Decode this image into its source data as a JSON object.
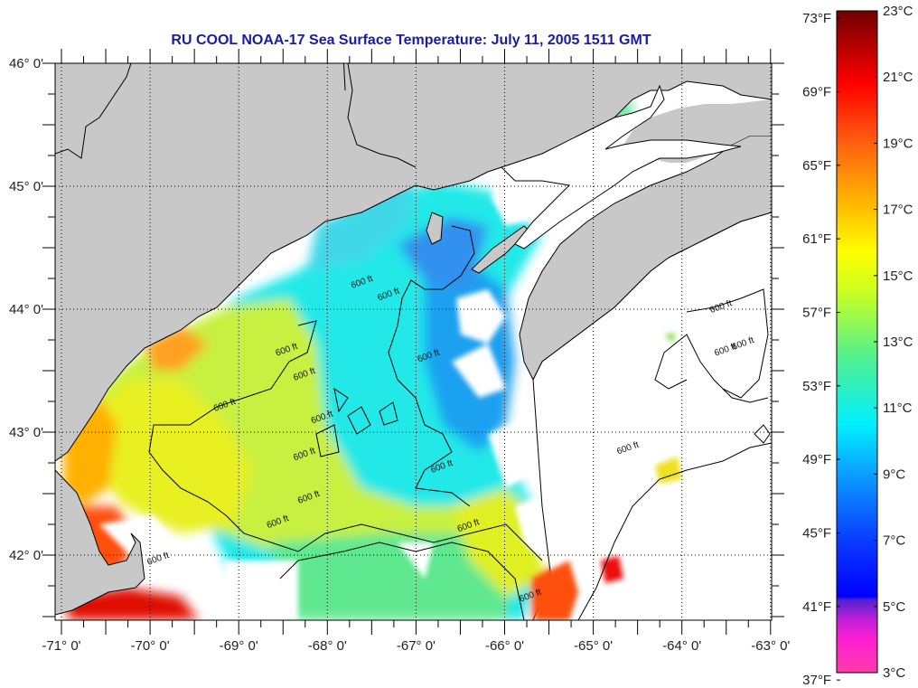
{
  "title": "RU COOL  NOAA-17  Sea Surface Temperature:  July 11, 2005 1511 GMT",
  "map": {
    "lon_range": [
      -71.08,
      -62.98
    ],
    "lat_range": [
      41.47,
      46.0
    ],
    "lon_ticks": [
      {
        "value": -71,
        "label": "-71° 0'"
      },
      {
        "value": -70,
        "label": "-70° 0'"
      },
      {
        "value": -69,
        "label": "-69° 0'"
      },
      {
        "value": -68,
        "label": "-68° 0'"
      },
      {
        "value": -67,
        "label": "-67° 0'"
      },
      {
        "value": -66,
        "label": "-66° 0'"
      },
      {
        "value": -65,
        "label": "-65° 0'"
      },
      {
        "value": -64,
        "label": "-64° 0'"
      },
      {
        "value": -63,
        "label": "-63° 0'"
      }
    ],
    "lat_ticks": [
      {
        "value": 46,
        "label": "46° 0'"
      },
      {
        "value": 45,
        "label": "45° 0'"
      },
      {
        "value": 44,
        "label": "44° 0'"
      },
      {
        "value": 43,
        "label": "43° 0'"
      },
      {
        "value": 42,
        "label": "42° 0'"
      }
    ],
    "grid": "dotted",
    "land_color": "#c8c8c8",
    "cloud_color": "#ffffff",
    "contour_label": "600 ft",
    "contour_labels": [
      {
        "lon": -67.6,
        "lat": 44.2,
        "text": "600 ft"
      },
      {
        "lon": -67.3,
        "lat": 44.1,
        "text": "600 ft"
      },
      {
        "lon": -68.45,
        "lat": 43.65,
        "text": "600 ft"
      },
      {
        "lon": -68.25,
        "lat": 43.45,
        "text": "600 ft"
      },
      {
        "lon": -66.85,
        "lat": 43.6,
        "text": "600 ft"
      },
      {
        "lon": -69.15,
        "lat": 43.2,
        "text": "600 ft"
      },
      {
        "lon": -68.05,
        "lat": 43.1,
        "text": "600 ft"
      },
      {
        "lon": -68.25,
        "lat": 42.8,
        "text": "600 ft"
      },
      {
        "lon": -68.2,
        "lat": 42.45,
        "text": "600 ft"
      },
      {
        "lon": -68.55,
        "lat": 42.25,
        "text": "600 ft"
      },
      {
        "lon": -66.7,
        "lat": 42.7,
        "text": "600 ft"
      },
      {
        "lon": -66.4,
        "lat": 42.22,
        "text": "600 ft"
      },
      {
        "lon": -69.9,
        "lat": 41.95,
        "text": "600 ft"
      },
      {
        "lon": -65.7,
        "lat": 41.65,
        "text": "600 ft"
      },
      {
        "lon": -64.6,
        "lat": 42.85,
        "text": "600 ft"
      },
      {
        "lon": -63.55,
        "lat": 44.0,
        "text": "600 ft"
      },
      {
        "lon": -63.5,
        "lat": 43.65,
        "text": "600 ft"
      },
      {
        "lon": -63.3,
        "lat": 43.7,
        "text": "600 ft"
      }
    ]
  },
  "colorbar": {
    "label_units_left": "°F",
    "label_units_right": "°C",
    "range_c": [
      3,
      23
    ],
    "fahrenheit_ticks": [
      {
        "value": 73,
        "label": "73°F"
      },
      {
        "value": 69,
        "label": "69°F"
      },
      {
        "value": 65,
        "label": "65°F"
      },
      {
        "value": 61,
        "label": "61°F"
      },
      {
        "value": 57,
        "label": "57°F"
      },
      {
        "value": 53,
        "label": "53°F"
      },
      {
        "value": 49,
        "label": "49°F"
      },
      {
        "value": 45,
        "label": "45°F"
      },
      {
        "value": 41,
        "label": "41°F"
      },
      {
        "value": 37,
        "label": "37°F"
      }
    ],
    "celsius_ticks": [
      {
        "value": 23,
        "label": "23°C"
      },
      {
        "value": 21,
        "label": "21°C"
      },
      {
        "value": 19,
        "label": "19°C"
      },
      {
        "value": 17,
        "label": "17°C"
      },
      {
        "value": 15,
        "label": "15°C"
      },
      {
        "value": 13,
        "label": "13°C"
      },
      {
        "value": 11,
        "label": "11°C"
      },
      {
        "value": 9,
        "label": "9°C"
      },
      {
        "value": 7,
        "label": "7°C"
      },
      {
        "value": 5,
        "label": "5°C"
      },
      {
        "value": 3,
        "label": "3°C"
      }
    ],
    "stops": [
      {
        "c": 3,
        "color": "#ff3ca8"
      },
      {
        "c": 4,
        "color": "#ff1ed2"
      },
      {
        "c": 4.6,
        "color": "#c020d8"
      },
      {
        "c": 5.2,
        "color": "#5020d0"
      },
      {
        "c": 5.3,
        "color": "#0000ff"
      },
      {
        "c": 7,
        "color": "#0a3cff"
      },
      {
        "c": 9,
        "color": "#0a9eff"
      },
      {
        "c": 10.5,
        "color": "#00f0ff"
      },
      {
        "c": 12.5,
        "color": "#50f090"
      },
      {
        "c": 14.5,
        "color": "#c8ff20"
      },
      {
        "c": 15.7,
        "color": "#ffff00"
      },
      {
        "c": 17,
        "color": "#ffc000"
      },
      {
        "c": 19,
        "color": "#ff6010"
      },
      {
        "c": 20.8,
        "color": "#ff0000"
      },
      {
        "c": 23,
        "color": "#700000"
      }
    ]
  }
}
